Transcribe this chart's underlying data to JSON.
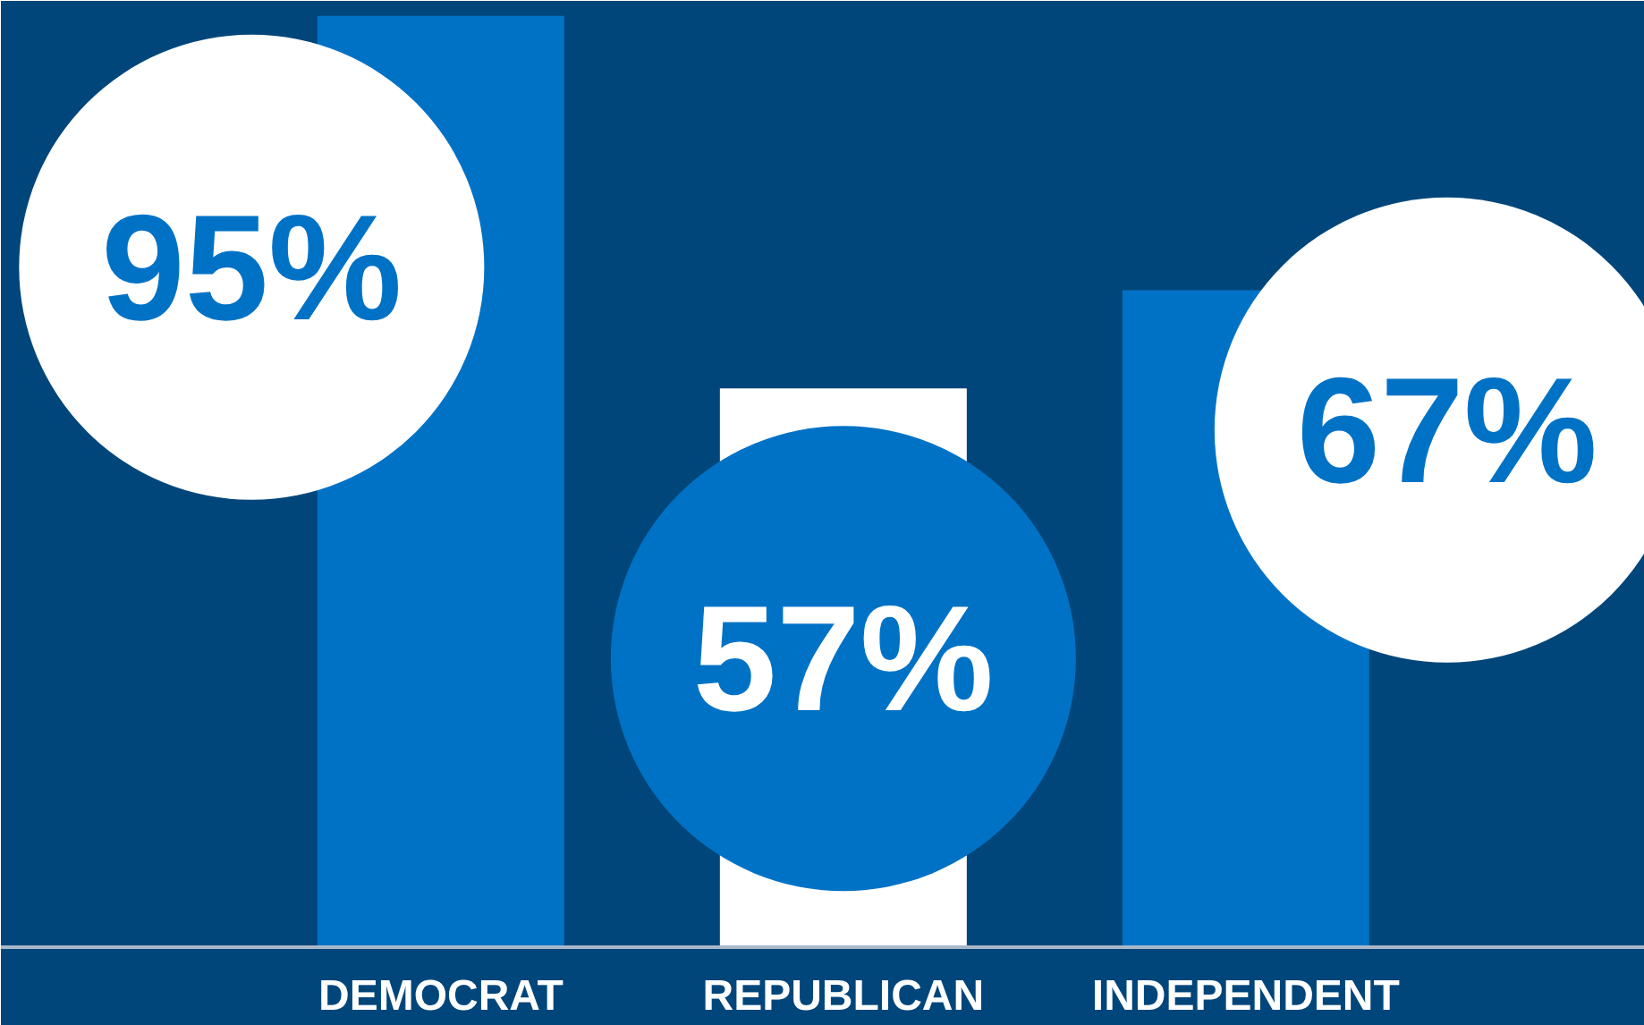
{
  "chart_data": {
    "type": "bar",
    "categories": [
      "DEMOCRAT",
      "REPUBLICAN",
      "INDEPENDENT"
    ],
    "values": [
      95,
      57,
      67
    ],
    "colors": [
      "#0072c6",
      "#ffffff",
      "#0072c6"
    ],
    "value_labels": [
      "95%",
      "57%",
      "67%"
    ]
  }
}
